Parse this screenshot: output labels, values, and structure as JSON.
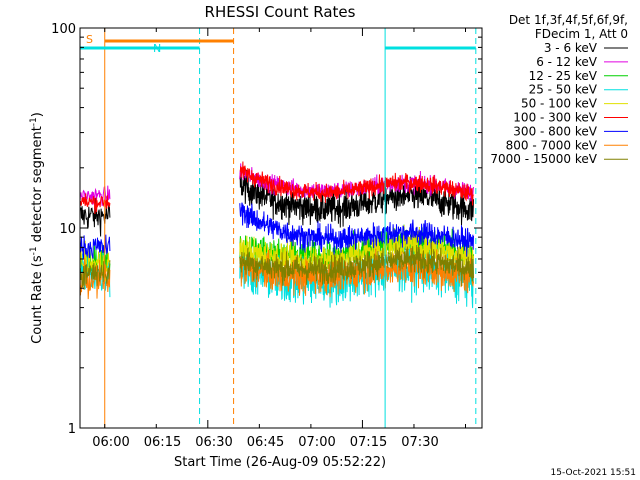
{
  "chart_data": {
    "type": "line",
    "title": "RHESSI Count Rates",
    "xlabel": "Start Time (26-Aug-09 05:52:22)",
    "ylabel_main": "Count Rate (s",
    "ylabel_sup1": "-1",
    "ylabel_mid": " detector segment",
    "ylabel_sup2": "-1",
    "ylabel_end": ")",
    "yscale": "log",
    "ylim": [
      1,
      100
    ],
    "yticks": [
      {
        "value": 1,
        "label": "1"
      },
      {
        "value": 10,
        "label": "10"
      },
      {
        "value": 100,
        "label": "100"
      }
    ],
    "xlim_minutes": [
      -7.4,
      31.6
    ],
    "xtick_labels": [
      "06:00",
      "06:15",
      "06:30",
      "06:45",
      "07:00",
      "07:15",
      "07:30"
    ],
    "data_gap_minutes": [
      -4.5,
      7.5
    ],
    "legend": {
      "header_line1": "Det 1f,3f,4f,5f,6f,9f,",
      "header_line2": "FDecim 1, Att 0",
      "placement": "right"
    },
    "series": [
      {
        "name": "3 - 6 keV",
        "color": "#000000",
        "base": 11.5,
        "noise": 0.09,
        "pre": 11.5,
        "start": 17.5,
        "hump": 1.25
      },
      {
        "name": "6 - 12 keV",
        "color": "#e000e0",
        "base": 14.5,
        "noise": 0.05,
        "pre": 14.5,
        "start": 20.0,
        "hump": 1.15
      },
      {
        "name": "12 - 25 keV",
        "color": "#00d000",
        "base": 6.8,
        "noise": 0.09,
        "pre": 6.8,
        "start": 8.5,
        "hump": 1.25
      },
      {
        "name": "25 - 50 keV",
        "color": "#00e0e0",
        "base": 5.0,
        "noise": 0.13,
        "pre": 6.0,
        "start": 6.5,
        "hump": 1.25
      },
      {
        "name": "50 - 100 keV",
        "color": "#e0e000",
        "base": 6.6,
        "noise": 0.09,
        "pre": 6.6,
        "start": 8.0,
        "hump": 1.25
      },
      {
        "name": "100 - 300 keV",
        "color": "#ff0000",
        "base": 14.0,
        "noise": 0.05,
        "pre": 13.5,
        "start": 20.5,
        "hump": 1.2
      },
      {
        "name": "300 - 800 keV",
        "color": "#0000ff",
        "base": 8.2,
        "noise": 0.07,
        "pre": 8.0,
        "start": 13.0,
        "hump": 1.15
      },
      {
        "name": "800 - 7000 keV",
        "color": "#ff8000",
        "base": 5.5,
        "noise": 0.1,
        "pre": 5.5,
        "start": 6.5,
        "hump": 1.15
      },
      {
        "name": "7000 - 15000 keV",
        "color": "#808000",
        "base": 6.0,
        "noise": 0.08,
        "pre": 6.0,
        "start": 7.0,
        "hump": 1.15
      }
    ],
    "attenuator_flag": {
      "label": "S",
      "color": "#ff8000",
      "start_min": -5.0,
      "end_min": 7.5,
      "level": 85
    },
    "night_flag": {
      "label": "N",
      "color": "#00e0e0",
      "segments": [
        [
          -7.4,
          4.2
        ],
        [
          22.2,
          31.0
        ]
      ],
      "level": 78
    },
    "solid_markers": [
      {
        "minute": -7.4,
        "color": "#00e0e0"
      },
      {
        "minute": -5.0,
        "color": "#ff8000"
      },
      {
        "minute": 22.2,
        "color": "#00e0e0"
      }
    ],
    "dashed_markers": [
      {
        "minute": 4.2,
        "color": "#00e0e0"
      },
      {
        "minute": 7.5,
        "color": "#ff8000"
      },
      {
        "minute": 31.0,
        "color": "#00e0e0"
      }
    ]
  },
  "footer": {
    "timestamp": "15-Oct-2021 15:51"
  }
}
